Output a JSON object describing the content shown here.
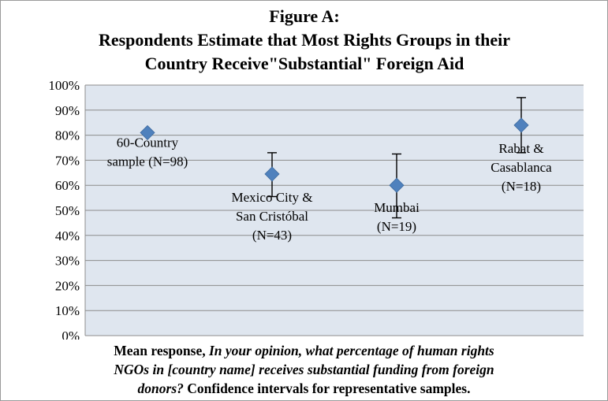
{
  "chart_data": {
    "type": "scatter",
    "title_lines": [
      "Figure A:",
      "Respondents Estimate that Most Rights Groups in their",
      "Country  Receive\"Substantial\" Foreign Aid"
    ],
    "xlabel": "",
    "ylabel": "",
    "ylim": [
      0,
      100
    ],
    "y_ticks": [
      0,
      10,
      20,
      30,
      40,
      50,
      60,
      70,
      80,
      90,
      100
    ],
    "y_tick_labels": [
      "0%",
      "10%",
      "20%",
      "30%",
      "40%",
      "50%",
      "60%",
      "70%",
      "80%",
      "90%",
      "100%"
    ],
    "grid": true,
    "marker_color": "#4f81bd",
    "plot_background": "#dfe6ef",
    "points": [
      {
        "label_lines": [
          "60-Country",
          "sample (N=98)"
        ],
        "y": 81,
        "ci": null
      },
      {
        "label_lines": [
          "Mexico City &",
          "San Cristóbal",
          "(N=43)"
        ],
        "y": 64.5,
        "ci": [
          55.5,
          73
        ]
      },
      {
        "label_lines": [
          "Mumbai",
          "(N=19)"
        ],
        "y": 60,
        "ci": [
          47,
          72.5
        ]
      },
      {
        "label_lines": [
          "Rabat &",
          "Casablanca",
          "(N=18)"
        ],
        "y": 84,
        "ci": [
          73,
          95
        ]
      }
    ]
  },
  "caption": {
    "line1_bold": "Mean response, ",
    "line1_italic": "In your opinion, what percentage of human rights",
    "line2_italic": "NGOs in [country name] receives substantial funding from foreign",
    "line3_italic": "donors?",
    "line3_bold": " Confidence intervals for representative samples."
  }
}
